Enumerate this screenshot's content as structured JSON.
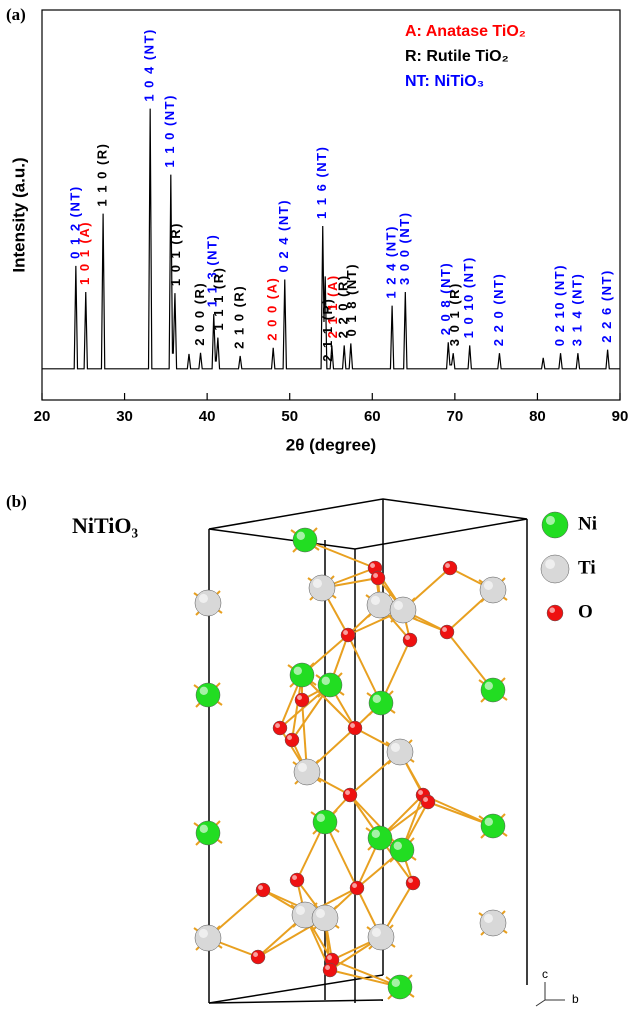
{
  "chart_data": {
    "type": "line",
    "panel_label": "(a)",
    "xlabel": "2θ (degree)",
    "ylabel": "Intensity (a.u.)",
    "xlim": [
      20,
      90
    ],
    "xticks": [
      20,
      30,
      40,
      50,
      60,
      70,
      80,
      90
    ],
    "ylim": [
      0,
      100
    ],
    "x": [
      20,
      23.9,
      24.1,
      24.3,
      25.1,
      25.3,
      25.5,
      27.2,
      27.4,
      27.6,
      32.9,
      33.1,
      33.3,
      35.4,
      35.6,
      35.8,
      35.9,
      36.1,
      36.3,
      37.6,
      37.8,
      38.0,
      39.0,
      39.2,
      39.4,
      40.6,
      40.8,
      41.0,
      41.1,
      41.3,
      41.5,
      43.8,
      44.0,
      44.2,
      47.8,
      48.0,
      48.2,
      49.2,
      49.4,
      49.6,
      53.8,
      54.0,
      54.15,
      54.3,
      54.5,
      54.9,
      55.1,
      55.3,
      56.4,
      56.6,
      56.8,
      57.2,
      57.4,
      57.6,
      62.2,
      62.4,
      62.6,
      63.8,
      64.0,
      64.2,
      69.0,
      69.2,
      69.4,
      69.6,
      69.8,
      70.0,
      71.6,
      71.8,
      72.0,
      75.2,
      75.4,
      75.6,
      80.5,
      80.7,
      80.9,
      82.6,
      82.8,
      83.0,
      84.7,
      84.9,
      85.1,
      88.3,
      88.5,
      88.7,
      90
    ],
    "series": [
      {
        "color": "#000000",
        "values": [
          8,
          8,
          34.4,
          8,
          8,
          27.7,
          8,
          8,
          47.8,
          8,
          8,
          74.7,
          8,
          8,
          57.8,
          12,
          12,
          27.4,
          8,
          8,
          11.8,
          8,
          8,
          12.1,
          8,
          8,
          22,
          10,
          10,
          16,
          8,
          8,
          11.3,
          8,
          8,
          13.4,
          8,
          8,
          30.9,
          8,
          8,
          44.6,
          20,
          31.7,
          8,
          8,
          14,
          8,
          8,
          14,
          8,
          8,
          14.5,
          8,
          8,
          24.2,
          8,
          8,
          27.7,
          8,
          8,
          14.8,
          9,
          9,
          12,
          8,
          8,
          14,
          8,
          8,
          12,
          8,
          8,
          10.8,
          8,
          8,
          12,
          8,
          8,
          12,
          8,
          8,
          12.9,
          8,
          8
        ]
      }
    ],
    "legend": [
      {
        "text": "A: Anatase TiO₂",
        "color": "#ff0000"
      },
      {
        "text": "R: Rutile TiO₂",
        "color": "#000000"
      },
      {
        "text": "NT: NiTiO₃",
        "color": "#0000ff"
      }
    ],
    "annotations": [
      {
        "text": "0 1 2 (NT)",
        "x": 24.1,
        "color": "#0000ff"
      },
      {
        "text": "1 0 1 (A)",
        "x": 25.3,
        "color": "#ff0000"
      },
      {
        "text": "1 1 0 (R)",
        "x": 27.4,
        "color": "#000000"
      },
      {
        "text": "1 0 4 (NT)",
        "x": 33.1,
        "color": "#0000ff"
      },
      {
        "text": "1 1 0 (NT)",
        "x": 35.6,
        "color": "#0000ff"
      },
      {
        "text": "1 0 1 (R)",
        "x": 36.3,
        "color": "#000000"
      },
      {
        "text": "2 0 0 (R)",
        "x": 39.2,
        "color": "#000000"
      },
      {
        "text": "1 1 3 (NT)",
        "x": 40.7,
        "color": "#0000ff"
      },
      {
        "text": "1 1 1 (R)",
        "x": 41.5,
        "color": "#000000"
      },
      {
        "text": "2 1 0 (R)",
        "x": 44.0,
        "color": "#000000"
      },
      {
        "text": "2 0 0 (A)",
        "x": 48.0,
        "color": "#ff0000"
      },
      {
        "text": "0 2 4 (NT)",
        "x": 49.4,
        "color": "#0000ff"
      },
      {
        "text": "1 1 6 (NT)",
        "x": 54.0,
        "color": "#0000ff"
      },
      {
        "text": "2 1 1 (R)",
        "x": 54.7,
        "color": "#000000"
      },
      {
        "text": "2 1 1 (A)",
        "x": 55.3,
        "color": "#ff0000"
      },
      {
        "text": "2 2 0 (R)",
        "x": 56.6,
        "color": "#000000"
      },
      {
        "text": "0 1 8 (NT)",
        "x": 57.6,
        "color": "#000000"
      },
      {
        "text": "1 2 4 (NT)",
        "x": 62.4,
        "color": "#0000ff"
      },
      {
        "text": "3 0 0 (NT)",
        "x": 64.0,
        "color": "#0000ff"
      },
      {
        "text": "2 0 8 (NT)",
        "x": 69.0,
        "color": "#0000ff"
      },
      {
        "text": "3 0 1 (R)",
        "x": 70.1,
        "color": "#000000"
      },
      {
        "text": "1 0 10 (NT)",
        "x": 71.8,
        "color": "#0000ff"
      },
      {
        "text": "2 2 0 (NT)",
        "x": 75.4,
        "color": "#0000ff"
      },
      {
        "text": "0 2 10 (NT)",
        "x": 82.8,
        "color": "#0000ff"
      },
      {
        "text": "3 1 4 (NT)",
        "x": 84.9,
        "color": "#0000ff"
      },
      {
        "text": "2 2 6 (NT)",
        "x": 88.5,
        "color": "#0000ff"
      }
    ]
  },
  "structure": {
    "panel_label": "(b)",
    "title": "NiTiO₃",
    "legend": [
      {
        "label": "Ni",
        "color": "#22dd22"
      },
      {
        "label": "Ti",
        "color": "#d8d8d8"
      },
      {
        "label": "O",
        "color": "#ee1111"
      }
    ],
    "axes": [
      "c",
      "b"
    ]
  }
}
